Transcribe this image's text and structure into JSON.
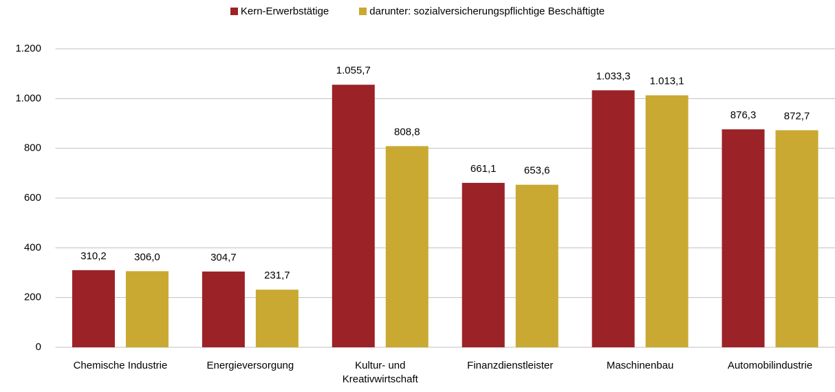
{
  "chart_data": {
    "type": "bar",
    "categories": [
      "Chemische Industrie",
      "Energieversorgung",
      "Kultur- und Kreativwirtschaft",
      "Finanzdienstleister",
      "Maschinenbau",
      "Automobilindustrie"
    ],
    "series": [
      {
        "name": "Kern-Erwerbstätige",
        "color": "#9b2226",
        "values": [
          310.2,
          304.7,
          1055.7,
          661.1,
          1033.3,
          876.3
        ],
        "value_labels": [
          "310,2",
          "304,7",
          "1.055,7",
          "661,1",
          "1.033,3",
          "876,3"
        ]
      },
      {
        "name": "darunter: sozialversicherungspflichtige Beschäftigte",
        "color": "#c9a931",
        "values": [
          306.0,
          231.7,
          808.8,
          653.6,
          1013.1,
          872.7
        ],
        "value_labels": [
          "306,0",
          "231,7",
          "808,8",
          "653,6",
          "1.013,1",
          "872,7"
        ]
      }
    ],
    "ylim": [
      0,
      1200
    ],
    "yticks": [
      0,
      200,
      400,
      600,
      800,
      {
        "value": 1000,
        "label": "1.000"
      },
      {
        "value": 1200,
        "label": "1.200"
      }
    ],
    "grid": true,
    "legend": "top"
  }
}
